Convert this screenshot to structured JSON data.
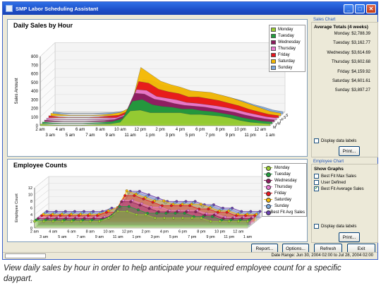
{
  "window": {
    "title": "SMP Labor Scheduling Assistant",
    "colors": {
      "titlebar": "#1d4fc9",
      "accent": "#1f52b5"
    }
  },
  "top_chart": {
    "title": "Daily Sales by Hour",
    "ylabel": "Sales Amount"
  },
  "bottom_chart": {
    "title": "Employee Counts",
    "ylabel": "Employee Count"
  },
  "sales_panel": {
    "header": "Sales Chart",
    "totals_title": "Average Totals (4 weeks)",
    "totals": [
      {
        "label": "Monday: $2,788.39"
      },
      {
        "label": "Tuesday: $3,162.77"
      },
      {
        "label": "Wednesday: $3,614.69"
      },
      {
        "label": "Thursday: $3,602.68"
      },
      {
        "label": "Friday: $4,159.92"
      },
      {
        "label": "Saturday: $4,601.61"
      },
      {
        "label": "Sunday: $3,897.27"
      }
    ],
    "display_labels": "Display data labels",
    "print": "Print..."
  },
  "employee_panel": {
    "header": "Employee Chart",
    "show_graphs": "Show Graphs",
    "options": [
      {
        "label": "Best Fit Max Sales",
        "checked": false
      },
      {
        "label": "User Defined",
        "checked": false
      },
      {
        "label": "Best Fit Average Sales",
        "checked": true
      }
    ],
    "display_labels": "Display data labels",
    "print": "Print..."
  },
  "buttons": {
    "report": "Report...",
    "options": "Options...",
    "refresh": "Refresh",
    "exit": "Exit"
  },
  "status": {
    "date_range": "Date Range: Jun 30, 2004 02:00 to Jul 28, 2004 02:00"
  },
  "caption": "View daily sales by hour in order to help anticipate your required employee count for a specific daypart.",
  "chart_data": [
    {
      "type": "area",
      "title": "Daily Sales by Hour",
      "ylabel": "Sales Amount",
      "ylim": [
        0,
        800
      ],
      "yticks": [
        "0",
        "100",
        "200",
        "300",
        "400",
        "500",
        "600",
        "700",
        "800"
      ],
      "x": [
        "2 am",
        "3 am",
        "4 am",
        "5 am",
        "6 am",
        "7 am",
        "8 am",
        "9 am",
        "10 am",
        "11 am",
        "12 pm",
        "1 pm",
        "2 pm",
        "3 pm",
        "4 pm",
        "5 pm",
        "6 pm",
        "7 pm",
        "8 pm",
        "9 pm",
        "10 pm",
        "11 pm",
        "12 am",
        "1 am"
      ],
      "depth_labels": [
        "M",
        "T",
        "W",
        "T",
        "F",
        "S",
        "S"
      ],
      "legend_position": "top-right",
      "series": [
        {
          "name": "Monday",
          "color": "#9acd32",
          "values": [
            20,
            10,
            5,
            5,
            5,
            10,
            15,
            20,
            40,
            170,
            180,
            150,
            150,
            150,
            150,
            130,
            130,
            120,
            110,
            90,
            60,
            40,
            30,
            20
          ]
        },
        {
          "name": "Tuesday",
          "color": "#1f9e3c",
          "values": [
            20,
            10,
            5,
            5,
            5,
            10,
            15,
            25,
            60,
            260,
            280,
            220,
            200,
            190,
            170,
            170,
            150,
            140,
            120,
            100,
            70,
            50,
            30,
            20
          ]
        },
        {
          "name": "Wednesday",
          "color": "#8b1a5c",
          "values": [
            20,
            10,
            5,
            5,
            5,
            10,
            15,
            25,
            70,
            330,
            320,
            260,
            240,
            210,
            190,
            180,
            170,
            150,
            130,
            110,
            80,
            55,
            35,
            20
          ]
        },
        {
          "name": "Thursday",
          "color": "#e87bd1",
          "values": [
            20,
            10,
            5,
            5,
            5,
            10,
            15,
            25,
            70,
            350,
            340,
            270,
            250,
            230,
            200,
            190,
            175,
            160,
            140,
            115,
            85,
            60,
            35,
            20
          ]
        },
        {
          "name": "Friday",
          "color": "#e8141c",
          "values": [
            25,
            10,
            5,
            5,
            5,
            10,
            20,
            30,
            80,
            420,
            400,
            330,
            300,
            280,
            240,
            240,
            220,
            200,
            170,
            140,
            100,
            70,
            40,
            25
          ]
        },
        {
          "name": "Saturday",
          "color": "#f5b800",
          "values": [
            30,
            15,
            5,
            5,
            5,
            10,
            20,
            40,
            100,
            560,
            480,
            400,
            360,
            330,
            290,
            280,
            270,
            240,
            210,
            170,
            130,
            90,
            50,
            30
          ]
        },
        {
          "name": "Sunday",
          "color": "#7da7d9",
          "values": [
            25,
            10,
            5,
            5,
            5,
            10,
            15,
            30,
            80,
            400,
            380,
            330,
            310,
            290,
            260,
            250,
            230,
            210,
            180,
            150,
            110,
            80,
            45,
            25
          ]
        }
      ]
    },
    {
      "type": "line",
      "title": "Employee Counts",
      "ylabel": "Employee Count",
      "ylim": [
        0,
        12
      ],
      "yticks": [
        "0",
        "2",
        "4",
        "6",
        "8",
        "10",
        "12"
      ],
      "x": [
        "2 am",
        "3 am",
        "4 am",
        "5 am",
        "6 am",
        "7 am",
        "8 am",
        "9 am",
        "10 am",
        "11 am",
        "12 pm",
        "1 pm",
        "2 pm",
        "3 pm",
        "4 pm",
        "5 pm",
        "6 pm",
        "7 pm",
        "8 pm",
        "9 pm",
        "10 pm",
        "11 pm",
        "12 am",
        "1 am"
      ],
      "legend_position": "top-right",
      "series": [
        {
          "name": "Monday",
          "color": "#9acd32",
          "values": [
            2,
            2,
            2,
            2,
            2,
            2,
            2,
            2,
            3,
            5,
            5,
            4,
            4,
            3,
            3,
            3,
            3,
            3,
            3,
            2,
            2,
            2,
            2,
            2
          ]
        },
        {
          "name": "Tuesday",
          "color": "#1f9e3c",
          "values": [
            2,
            2,
            2,
            2,
            2,
            2,
            2,
            2,
            3,
            6,
            6,
            5,
            4,
            4,
            4,
            4,
            4,
            3,
            3,
            3,
            2,
            2,
            2,
            2
          ]
        },
        {
          "name": "Wednesday",
          "color": "#8b1a5c",
          "values": [
            2,
            2,
            2,
            2,
            2,
            2,
            2,
            2,
            3,
            7,
            7,
            6,
            5,
            4,
            4,
            4,
            4,
            4,
            3,
            3,
            2,
            2,
            2,
            2
          ]
        },
        {
          "name": "Thursday",
          "color": "#e87bd1",
          "values": [
            2,
            2,
            2,
            2,
            2,
            2,
            2,
            2,
            3,
            7,
            7,
            6,
            5,
            5,
            4,
            4,
            4,
            4,
            3,
            3,
            2,
            2,
            2,
            2
          ]
        },
        {
          "name": "Friday",
          "color": "#e8141c",
          "values": [
            2,
            2,
            2,
            2,
            2,
            2,
            2,
            3,
            3,
            8,
            8,
            7,
            6,
            5,
            5,
            5,
            5,
            4,
            4,
            3,
            3,
            2,
            2,
            2
          ]
        },
        {
          "name": "Saturday",
          "color": "#f5b800",
          "values": [
            2,
            2,
            2,
            2,
            2,
            2,
            2,
            3,
            4,
            9,
            8,
            7,
            6,
            6,
            5,
            5,
            5,
            5,
            4,
            3,
            3,
            2,
            2,
            2
          ]
        },
        {
          "name": "Sunday",
          "color": "#7da7d9",
          "values": [
            2,
            2,
            2,
            2,
            2,
            2,
            2,
            3,
            3,
            8,
            8,
            7,
            6,
            5,
            5,
            5,
            5,
            4,
            4,
            3,
            3,
            2,
            2,
            2
          ]
        },
        {
          "name": "Best Fit Avg Sales",
          "color": "#6a3fb0",
          "values": [
            2,
            2,
            2,
            2,
            2,
            2,
            2,
            3,
            3,
            8,
            8,
            7,
            6,
            5,
            5,
            5,
            5,
            4,
            4,
            3,
            3,
            2,
            2,
            2
          ]
        }
      ]
    }
  ]
}
